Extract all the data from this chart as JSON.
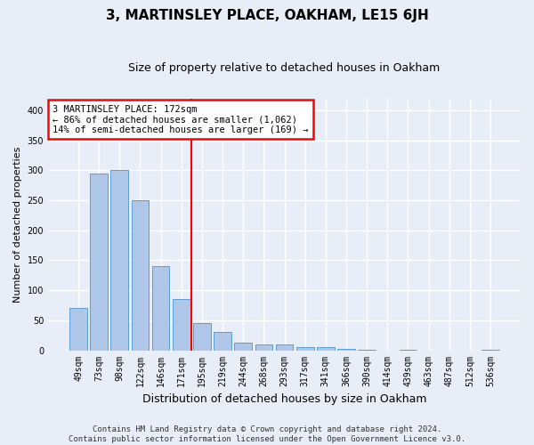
{
  "title": "3, MARTINSLEY PLACE, OAKHAM, LE15 6JH",
  "subtitle": "Size of property relative to detached houses in Oakham",
  "xlabel": "Distribution of detached houses by size in Oakham",
  "ylabel": "Number of detached properties",
  "footer_line1": "Contains HM Land Registry data © Crown copyright and database right 2024.",
  "footer_line2": "Contains public sector information licensed under the Open Government Licence v3.0.",
  "categories": [
    "49sqm",
    "73sqm",
    "98sqm",
    "122sqm",
    "146sqm",
    "171sqm",
    "195sqm",
    "219sqm",
    "244sqm",
    "268sqm",
    "293sqm",
    "317sqm",
    "341sqm",
    "366sqm",
    "390sqm",
    "414sqm",
    "439sqm",
    "463sqm",
    "487sqm",
    "512sqm",
    "536sqm"
  ],
  "values": [
    70,
    295,
    300,
    250,
    140,
    85,
    45,
    30,
    12,
    10,
    9,
    5,
    5,
    2,
    1,
    0,
    1,
    0,
    0,
    0,
    1
  ],
  "bar_color": "#aec6e8",
  "bar_edge_color": "#5a9fd4",
  "annotation_text_line1": "3 MARTINSLEY PLACE: 172sqm",
  "annotation_text_line2": "← 86% of detached houses are smaller (1,062)",
  "annotation_text_line3": "14% of semi-detached houses are larger (169) →",
  "annotation_box_color": "white",
  "annotation_box_edge": "red",
  "vline_color": "red",
  "vline_x": 5.5,
  "ylim": [
    0,
    420
  ],
  "yticks": [
    0,
    50,
    100,
    150,
    200,
    250,
    300,
    350,
    400
  ],
  "background_color": "#e8eef7",
  "grid_color": "white",
  "title_fontsize": 11,
  "subtitle_fontsize": 9,
  "ylabel_fontsize": 8,
  "xlabel_fontsize": 9,
  "tick_fontsize": 7,
  "annotation_fontsize": 7.5,
  "footer_fontsize": 6.5
}
